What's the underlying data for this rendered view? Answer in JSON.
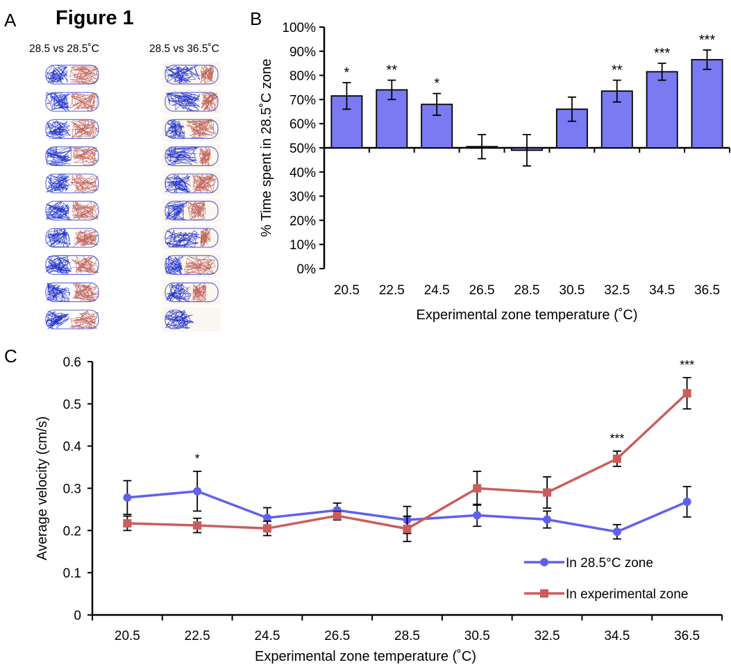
{
  "figure": {
    "title": "Figure 1",
    "panel_a_letter": "A",
    "panel_b_letter": "B",
    "panel_c_letter": "C"
  },
  "panel_a": {
    "columns": [
      "28.5 vs 28.5˚C",
      "28.5 vs 36.5˚C"
    ],
    "trace_colors": {
      "control_zone": "#2233cc",
      "experimental_zone": "#b5483f"
    }
  },
  "chart_data": [
    {
      "panel": "B",
      "type": "bar",
      "ylabel": "% Time spent in 28.5˚C zone",
      "xlabel": "Experimental zone temperature (˚C)",
      "categories": [
        "20.5",
        "22.5",
        "24.5",
        "26.5",
        "28.5",
        "30.5",
        "32.5",
        "34.5",
        "36.5"
      ],
      "values": [
        71.5,
        74,
        68,
        50.5,
        49,
        66,
        73.5,
        81.5,
        86.5
      ],
      "errors": [
        5.5,
        4,
        4.5,
        5,
        6.5,
        5,
        4.5,
        3.5,
        4
      ],
      "significance": [
        "*",
        "**",
        "*",
        "",
        "",
        "",
        "**",
        "***",
        "***"
      ],
      "baseline": 50,
      "ylim": [
        0,
        100
      ],
      "yticks": [
        "0%",
        "10%",
        "20%",
        "30%",
        "40%",
        "50%",
        "60%",
        "70%",
        "80%",
        "90%",
        "100%"
      ],
      "bar_color": "#7a7af2"
    },
    {
      "panel": "C",
      "type": "line",
      "ylabel": "Average velocity (cm/s)",
      "xlabel": "Experimental zone temperature (˚C)",
      "categories": [
        "20.5",
        "22.5",
        "24.5",
        "26.5",
        "28.5",
        "30.5",
        "32.5",
        "34.5",
        "36.5"
      ],
      "ylim": [
        0,
        0.6
      ],
      "yticks": [
        "0",
        "0.1",
        "0.2",
        "0.3",
        "0.4",
        "0.5",
        "0.6"
      ],
      "series": [
        {
          "name": "In 28.5°C zone",
          "color": "#6060f0",
          "marker": "circle",
          "values": [
            0.278,
            0.293,
            0.23,
            0.248,
            0.225,
            0.236,
            0.226,
            0.197,
            0.268
          ],
          "errors": [
            0.04,
            0.047,
            0.024,
            0.017,
            0.032,
            0.026,
            0.02,
            0.017,
            0.036
          ]
        },
        {
          "name": "In experimental zone",
          "color": "#cc5c5c",
          "marker": "square",
          "values": [
            0.217,
            0.212,
            0.205,
            0.235,
            0.204,
            0.3,
            0.29,
            0.37,
            0.525
          ],
          "errors": [
            0.017,
            0.017,
            0.017,
            0.01,
            0.03,
            0.04,
            0.037,
            0.018,
            0.037
          ]
        }
      ],
      "significance": [
        "",
        "*",
        "",
        "",
        "",
        "",
        "",
        "***",
        "***"
      ],
      "legend_position": "bottom-right"
    }
  ]
}
